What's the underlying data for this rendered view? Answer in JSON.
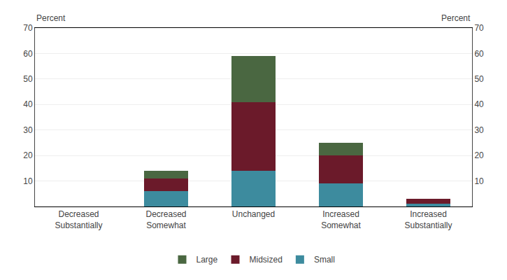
{
  "chart_data": {
    "type": "bar",
    "stacked": true,
    "categories": [
      "Decreased\nSubstantially",
      "Decreased\nSomewhat",
      "Unchanged",
      "Increased\nSomewhat",
      "Increased\nSubstantially"
    ],
    "series": [
      {
        "name": "Small",
        "color": "#3d8b9e",
        "values": [
          0,
          6,
          14,
          9,
          1
        ]
      },
      {
        "name": "Midsized",
        "color": "#6b1a2a",
        "values": [
          0,
          5,
          27,
          11,
          2
        ]
      },
      {
        "name": "Large",
        "color": "#4a6741",
        "values": [
          0,
          3,
          18,
          5,
          0
        ]
      }
    ],
    "ylabel": "Percent",
    "y2label": "Percent",
    "ylim": [
      0,
      70
    ],
    "yticks": [
      10,
      20,
      30,
      40,
      50,
      60,
      70
    ],
    "y2lim": [
      0,
      70
    ],
    "y2ticks": [
      10,
      20,
      30,
      40,
      50,
      60,
      70
    ],
    "grid": true,
    "legend": "bottom"
  }
}
